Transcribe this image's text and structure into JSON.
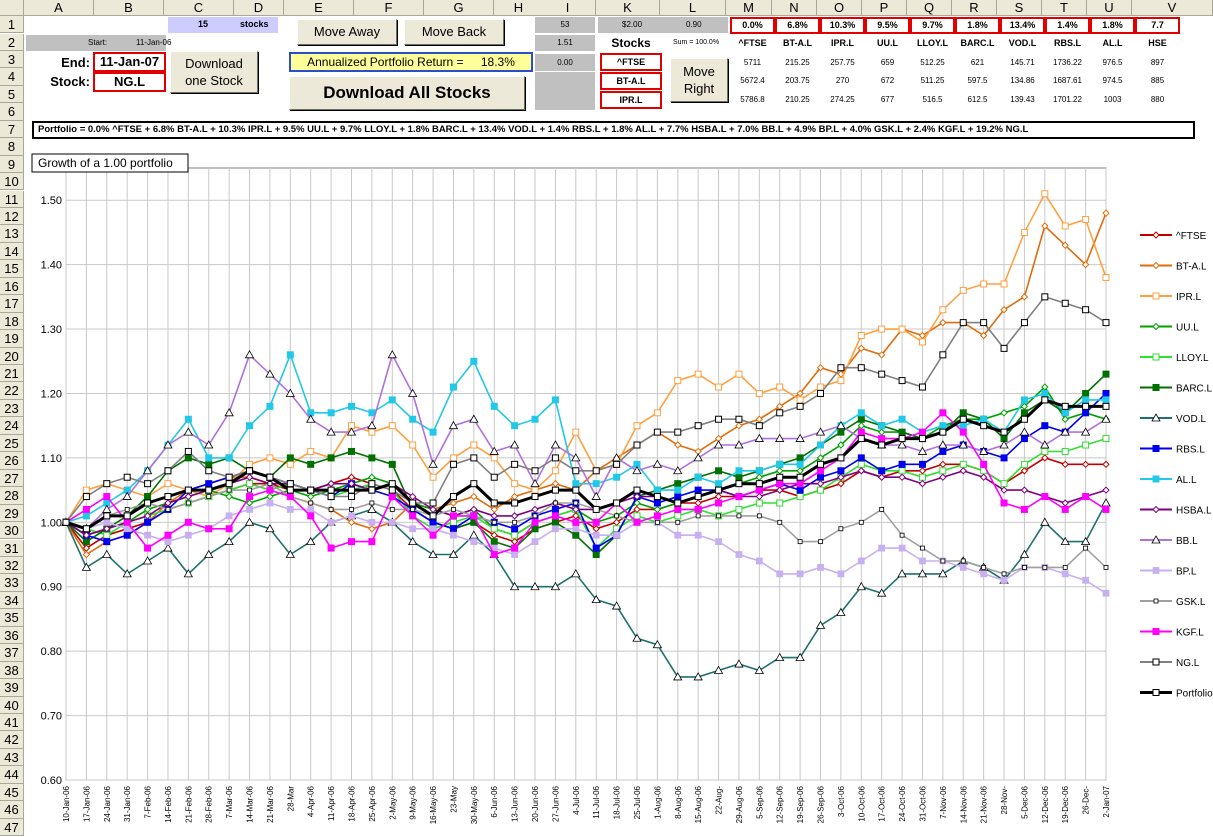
{
  "columns": [
    "A",
    "B",
    "C",
    "D",
    "E",
    "F",
    "G",
    "H",
    "I",
    "K",
    "L",
    "M",
    "N",
    "O",
    "P",
    "Q",
    "R",
    "S",
    "T",
    "U",
    "V"
  ],
  "rows": [
    "1",
    "2",
    "3",
    "4",
    "5",
    "6",
    "7",
    "8",
    "9",
    "10",
    "11",
    "12",
    "13",
    "14",
    "15",
    "16",
    "17",
    "18",
    "19",
    "20",
    "21",
    "22",
    "23",
    "24",
    "25",
    "26",
    "27",
    "28",
    "29",
    "30",
    "31",
    "32",
    "33",
    "34",
    "35",
    "36",
    "37",
    "38",
    "39",
    "40",
    "41",
    "42",
    "43",
    "44",
    "45",
    "46",
    "47"
  ],
  "top": {
    "stock_count": "15",
    "stocks_label": "stocks",
    "start_label": "Start:",
    "start_date": "11-Jan-06",
    "end_label": "End:",
    "end_date": "11-Jan-07",
    "stock_label": "Stock:",
    "stock_value": "NG.L",
    "move_away": "Move Away",
    "move_back": "Move Back",
    "download_one_1": "Download",
    "download_one_2": "one Stock",
    "annualized_label": "Annualized Portfolio Return =",
    "annualized_value": "18.3%",
    "download_all": "Download All Stocks",
    "i1": "53",
    "i2": "1.51",
    "i3": "0.00",
    "k1": "$2.00",
    "l1": "0.90",
    "stocks_header": "Stocks",
    "sum_label": "Sum = 100.0%",
    "move_right_1": "Move",
    "move_right_2": "Right",
    "k3": "^FTSE",
    "k4": "BT-A.L",
    "k5": "IPR.L"
  },
  "grid": {
    "weights": [
      "0.0%",
      "6.8%",
      "10.3%",
      "9.5%",
      "9.7%",
      "1.8%",
      "13.4%",
      "1.4%",
      "1.8%",
      "7.7"
    ],
    "tickers": [
      "^FTSE",
      "BT-A.L",
      "IPR.L",
      "UU.L",
      "LLOY.L",
      "BARC.L",
      "VOD.L",
      "RBS.L",
      "AL.L",
      "HSE"
    ],
    "row3": [
      "5711",
      "215.25",
      "257.75",
      "659",
      "512.25",
      "621",
      "145.71",
      "1736.22",
      "976.5",
      "897"
    ],
    "row4": [
      "5672.4",
      "203.75",
      "270",
      "672",
      "511.25",
      "597.5",
      "134.86",
      "1687.61",
      "974.5",
      "885"
    ],
    "row5": [
      "5786.8",
      "210.25",
      "274.25",
      "677",
      "516.5",
      "612.5",
      "139.43",
      "1701.22",
      "1003",
      "880"
    ]
  },
  "portfolio_text": "Portfolio = 0.0% ^FTSE + 6.8% BT-A.L + 10.3% IPR.L + 9.5% UU.L + 9.7% LLOY.L + 1.8% BARC.L + 13.4% VOD.L + 1.4% RBS.L + 1.8% AL.L + 7.7% HSBA.L + 7.0% BB.L + 4.9% BP.L + 4.0% GSK.L + 2.4% KGF.L + 19.2% NG.L",
  "chart_title": "Growth of a 1.00 portfolio",
  "colors": {
    "^FTSE": "#c00000",
    "BT-A.L": "#e26b0a",
    "IPR.L": "#ffa040",
    "UU.L": "#00a000",
    "LLOY.L": "#33dd33",
    "BARC.L": "#007000",
    "VOD.L": "#1f7070",
    "RBS.L": "#0000ee",
    "AL.L": "#22c8e8",
    "HSBA.L": "#800080",
    "BB.L": "#b070e0",
    "BP.L": "#c8b0f0",
    "GSK.L": "#a0a0a0",
    "KGF.L": "#ff00ff",
    "NG.L": "#808080",
    "Portfolio": "#000000"
  },
  "chart_data": {
    "type": "line",
    "title": "Growth of a 1.00 portfolio",
    "ylim": [
      0.6,
      1.55
    ],
    "yticks": [
      "0.60",
      "0.70",
      "0.80",
      "0.90",
      "1.00",
      "1.10",
      "1.20",
      "1.30",
      "1.40",
      "1.50"
    ],
    "x": [
      "10-Jan-06",
      "17-Jan-06",
      "24-Jan-06",
      "31-Jan-06",
      "7-Feb-06",
      "14-Feb-06",
      "21-Feb-06",
      "28-Feb-06",
      "7-Mar-06",
      "14-Mar-06",
      "21-Mar-06",
      "28-Mar",
      "4-Apr-06",
      "11-Apr-06",
      "18-Apr-06",
      "25-Apr-06",
      "2-May-06",
      "9-May-06",
      "16-May-06",
      "23-May",
      "30-May-06",
      "6-Jun-06",
      "13-Jun-06",
      "20-Jun-06",
      "27-Jun-06",
      "4-Jul-06",
      "11-Jul-06",
      "18-Jul-06",
      "25-Jul-06",
      "1-Aug-06",
      "8-Aug-06",
      "15-Aug-06",
      "22-Aug-",
      "29-Aug-06",
      "5-Sep-06",
      "12-Sep-06",
      "19-Sep-06",
      "26-Sep-06",
      "3-Oct-06",
      "10-Oct-06",
      "17-Oct-06",
      "24-Oct-06",
      "31-Oct-06",
      "7-Nov-06",
      "14-Nov-06",
      "21-Nov-06",
      "28-Nov-",
      "5-Dec-06",
      "12-Dec-06",
      "19-Dec-06",
      "26-Dec-",
      "2-Jan-07"
    ],
    "grid": true,
    "legend": "right",
    "series": [
      {
        "name": "^FTSE",
        "values": [
          1.0,
          0.96,
          0.98,
          0.99,
          1.0,
          1.02,
          1.03,
          1.04,
          1.05,
          1.06,
          1.06,
          1.05,
          1.05,
          1.06,
          1.07,
          1.06,
          1.05,
          1.02,
          1.0,
          0.99,
          1.0,
          0.98,
          0.97,
          0.99,
          1.0,
          1.01,
          0.99,
          1.0,
          1.02,
          1.02,
          1.03,
          1.03,
          1.04,
          1.04,
          1.05,
          1.05,
          1.04,
          1.05,
          1.06,
          1.08,
          1.07,
          1.08,
          1.08,
          1.09,
          1.09,
          1.08,
          1.06,
          1.08,
          1.1,
          1.09,
          1.09,
          1.09
        ]
      },
      {
        "name": "BT-A.L",
        "values": [
          1.0,
          0.95,
          0.97,
          0.98,
          1.0,
          1.03,
          1.05,
          1.06,
          1.07,
          1.07,
          1.06,
          1.04,
          1.03,
          1.02,
          1.0,
          0.99,
          1.0,
          1.03,
          1.02,
          1.03,
          1.04,
          1.02,
          1.04,
          1.05,
          1.06,
          1.05,
          1.08,
          1.1,
          1.12,
          1.14,
          1.12,
          1.11,
          1.13,
          1.15,
          1.16,
          1.18,
          1.2,
          1.24,
          1.23,
          1.27,
          1.26,
          1.3,
          1.29,
          1.31,
          1.31,
          1.29,
          1.33,
          1.35,
          1.46,
          1.43,
          1.4,
          1.48
        ]
      },
      {
        "name": "IPR.L",
        "values": [
          1.0,
          1.05,
          1.06,
          1.05,
          1.04,
          1.06,
          1.05,
          1.04,
          1.06,
          1.09,
          1.1,
          1.09,
          1.11,
          1.1,
          1.15,
          1.14,
          1.15,
          1.12,
          1.07,
          1.1,
          1.12,
          1.1,
          1.06,
          1.05,
          1.08,
          1.14,
          1.08,
          1.09,
          1.15,
          1.17,
          1.22,
          1.23,
          1.21,
          1.23,
          1.2,
          1.21,
          1.19,
          1.21,
          1.22,
          1.29,
          1.3,
          1.3,
          1.28,
          1.33,
          1.36,
          1.37,
          1.37,
          1.45,
          1.51,
          1.46,
          1.47,
          1.38
        ]
      },
      {
        "name": "UU.L",
        "values": [
          1.0,
          0.98,
          0.99,
          1.0,
          1.02,
          1.03,
          1.04,
          1.05,
          1.04,
          1.03,
          1.04,
          1.05,
          1.04,
          1.05,
          1.06,
          1.07,
          1.06,
          1.03,
          1.02,
          1.01,
          1.02,
          0.99,
          0.98,
          1.0,
          1.01,
          1.02,
          1.0,
          1.01,
          1.03,
          1.02,
          1.03,
          1.04,
          1.05,
          1.06,
          1.07,
          1.08,
          1.08,
          1.1,
          1.12,
          1.15,
          1.14,
          1.14,
          1.13,
          1.15,
          1.16,
          1.16,
          1.17,
          1.18,
          1.21,
          1.16,
          1.17,
          1.16
        ]
      },
      {
        "name": "LLOY.L",
        "values": [
          1.0,
          0.99,
          0.98,
          1.0,
          1.01,
          1.02,
          1.03,
          1.04,
          1.05,
          1.06,
          1.05,
          1.06,
          1.05,
          1.04,
          1.05,
          1.06,
          1.05,
          1.01,
          0.99,
          1.0,
          1.01,
          0.99,
          0.98,
          1.0,
          1.01,
          1.02,
          0.96,
          0.99,
          1.01,
          1.0,
          1.01,
          1.02,
          1.01,
          1.02,
          1.03,
          1.03,
          1.04,
          1.05,
          1.07,
          1.09,
          1.08,
          1.08,
          1.07,
          1.08,
          1.09,
          1.08,
          1.06,
          1.09,
          1.11,
          1.11,
          1.12,
          1.13
        ]
      },
      {
        "name": "BARC.L",
        "values": [
          1.0,
          0.97,
          0.99,
          1.01,
          1.04,
          1.08,
          1.1,
          1.09,
          1.1,
          1.08,
          1.07,
          1.1,
          1.09,
          1.1,
          1.11,
          1.1,
          1.09,
          1.02,
          1.0,
          0.99,
          1.0,
          0.97,
          0.96,
          0.99,
          1.0,
          0.98,
          0.95,
          0.98,
          1.04,
          1.05,
          1.06,
          1.07,
          1.08,
          1.07,
          1.08,
          1.09,
          1.1,
          1.12,
          1.14,
          1.16,
          1.15,
          1.14,
          1.13,
          1.14,
          1.17,
          1.16,
          1.13,
          1.17,
          1.19,
          1.17,
          1.2,
          1.23
        ]
      },
      {
        "name": "VOD.L",
        "values": [
          1.0,
          0.93,
          0.95,
          0.92,
          0.94,
          0.96,
          0.92,
          0.95,
          0.97,
          1.0,
          0.99,
          0.95,
          0.97,
          1.0,
          1.01,
          1.02,
          1.0,
          0.97,
          0.95,
          0.95,
          0.98,
          0.95,
          0.9,
          0.9,
          0.9,
          0.92,
          0.88,
          0.87,
          0.82,
          0.81,
          0.76,
          0.76,
          0.77,
          0.78,
          0.77,
          0.79,
          0.79,
          0.84,
          0.86,
          0.9,
          0.89,
          0.92,
          0.92,
          0.92,
          0.94,
          0.93,
          0.91,
          0.95,
          1.0,
          0.97,
          0.97,
          1.03
        ]
      },
      {
        "name": "RBS.L",
        "values": [
          1.0,
          0.98,
          0.97,
          0.98,
          1.0,
          1.02,
          1.05,
          1.06,
          1.07,
          1.08,
          1.07,
          1.06,
          1.05,
          1.04,
          1.06,
          1.05,
          1.04,
          1.02,
          1.0,
          0.99,
          1.01,
          1.0,
          0.99,
          1.01,
          1.02,
          1.03,
          0.96,
          0.98,
          1.04,
          1.03,
          1.04,
          1.05,
          1.05,
          1.04,
          1.05,
          1.06,
          1.05,
          1.07,
          1.08,
          1.1,
          1.08,
          1.09,
          1.09,
          1.11,
          1.12,
          1.11,
          1.1,
          1.13,
          1.15,
          1.14,
          1.17,
          1.2
        ]
      },
      {
        "name": "AL.L",
        "values": [
          1.0,
          1.01,
          1.03,
          1.05,
          1.08,
          1.12,
          1.16,
          1.1,
          1.1,
          1.15,
          1.18,
          1.26,
          1.17,
          1.17,
          1.18,
          1.17,
          1.19,
          1.16,
          1.14,
          1.21,
          1.25,
          1.18,
          1.15,
          1.16,
          1.19,
          1.06,
          1.06,
          1.07,
          1.09,
          1.05,
          1.05,
          1.07,
          1.06,
          1.08,
          1.08,
          1.09,
          1.09,
          1.12,
          1.15,
          1.17,
          1.15,
          1.16,
          1.14,
          1.15,
          1.15,
          1.16,
          1.14,
          1.19,
          1.2,
          1.17,
          1.19,
          1.19
        ]
      },
      {
        "name": "HSBA.L",
        "values": [
          1.0,
          0.98,
          0.99,
          1.0,
          1.01,
          1.03,
          1.04,
          1.05,
          1.06,
          1.07,
          1.06,
          1.06,
          1.05,
          1.06,
          1.06,
          1.05,
          1.06,
          1.04,
          1.02,
          1.01,
          1.02,
          1.01,
          1.01,
          1.02,
          1.03,
          1.02,
          1.02,
          1.03,
          1.04,
          1.04,
          1.03,
          1.04,
          1.05,
          1.04,
          1.04,
          1.05,
          1.06,
          1.06,
          1.07,
          1.08,
          1.07,
          1.07,
          1.06,
          1.07,
          1.08,
          1.07,
          1.05,
          1.05,
          1.04,
          1.03,
          1.04,
          1.05
        ]
      },
      {
        "name": "BB.L",
        "values": [
          1.0,
          0.99,
          1.02,
          1.04,
          1.08,
          1.12,
          1.14,
          1.12,
          1.17,
          1.26,
          1.23,
          1.2,
          1.16,
          1.14,
          1.14,
          1.15,
          1.26,
          1.2,
          1.09,
          1.15,
          1.16,
          1.11,
          1.12,
          1.06,
          1.12,
          1.1,
          1.04,
          1.1,
          1.08,
          1.09,
          1.08,
          1.1,
          1.12,
          1.12,
          1.13,
          1.13,
          1.13,
          1.14,
          1.15,
          1.13,
          1.12,
          1.12,
          1.11,
          1.12,
          1.12,
          1.11,
          1.12,
          1.14,
          1.12,
          1.14,
          1.14,
          1.16
        ]
      },
      {
        "name": "BP.L",
        "values": [
          1.0,
          0.99,
          1.0,
          0.99,
          0.98,
          0.97,
          0.98,
          0.99,
          1.01,
          1.02,
          1.03,
          1.02,
          1.02,
          1.0,
          1.01,
          1.0,
          1.0,
          0.99,
          0.99,
          0.98,
          0.97,
          0.96,
          0.95,
          0.97,
          0.99,
          0.99,
          0.98,
          0.98,
          1.0,
          1.0,
          0.98,
          0.98,
          0.97,
          0.95,
          0.94,
          0.92,
          0.92,
          0.93,
          0.92,
          0.94,
          0.96,
          0.96,
          0.94,
          0.94,
          0.93,
          0.92,
          0.91,
          0.93,
          0.93,
          0.92,
          0.91,
          0.89
        ]
      },
      {
        "name": "GSK.L",
        "values": [
          1.0,
          0.99,
          1.01,
          1.02,
          1.03,
          1.02,
          1.03,
          1.04,
          1.05,
          1.05,
          1.06,
          1.04,
          1.03,
          1.02,
          1.02,
          1.03,
          1.02,
          1.02,
          1.01,
          1.02,
          1.01,
          1.0,
          1.0,
          1.01,
          1.03,
          1.03,
          1.02,
          1.01,
          1.0,
          1.0,
          1.0,
          1.01,
          1.01,
          1.01,
          1.01,
          1.0,
          0.97,
          0.97,
          0.99,
          1.0,
          1.02,
          0.98,
          0.96,
          0.94,
          0.94,
          0.93,
          0.92,
          0.93,
          0.93,
          0.93,
          0.96,
          0.93
        ]
      },
      {
        "name": "KGF.L",
        "values": [
          1.0,
          1.02,
          1.04,
          1.0,
          0.96,
          0.98,
          1.0,
          0.99,
          0.99,
          1.04,
          1.05,
          1.04,
          1.01,
          0.96,
          0.97,
          0.97,
          1.04,
          1.01,
          0.98,
          1.01,
          1.01,
          0.95,
          0.96,
          1.0,
          1.01,
          1.0,
          1.0,
          1.03,
          1.0,
          1.01,
          1.02,
          1.02,
          1.03,
          1.04,
          1.05,
          1.06,
          1.06,
          1.08,
          1.1,
          1.14,
          1.13,
          1.13,
          1.14,
          1.17,
          1.14,
          1.09,
          1.03,
          1.02,
          1.04,
          1.02,
          1.04,
          1.02
        ]
      },
      {
        "name": "NG.L",
        "values": [
          1.0,
          1.04,
          1.06,
          1.07,
          1.06,
          1.08,
          1.11,
          1.08,
          1.07,
          1.08,
          1.07,
          1.06,
          1.05,
          1.04,
          1.04,
          1.06,
          1.05,
          1.03,
          1.03,
          1.09,
          1.1,
          1.07,
          1.09,
          1.08,
          1.1,
          1.08,
          1.08,
          1.09,
          1.12,
          1.14,
          1.14,
          1.15,
          1.16,
          1.16,
          1.15,
          1.17,
          1.18,
          1.2,
          1.24,
          1.24,
          1.23,
          1.22,
          1.21,
          1.26,
          1.31,
          1.31,
          1.27,
          1.31,
          1.35,
          1.34,
          1.33,
          1.31
        ]
      },
      {
        "name": "Portfolio",
        "values": [
          1.0,
          0.99,
          1.01,
          1.01,
          1.03,
          1.04,
          1.05,
          1.05,
          1.06,
          1.08,
          1.07,
          1.05,
          1.05,
          1.05,
          1.05,
          1.05,
          1.06,
          1.03,
          1.01,
          1.04,
          1.06,
          1.03,
          1.03,
          1.04,
          1.05,
          1.05,
          1.02,
          1.03,
          1.05,
          1.04,
          1.03,
          1.04,
          1.05,
          1.06,
          1.06,
          1.07,
          1.07,
          1.09,
          1.1,
          1.13,
          1.12,
          1.13,
          1.13,
          1.14,
          1.16,
          1.15,
          1.14,
          1.16,
          1.19,
          1.18,
          1.18,
          1.18
        ]
      }
    ]
  }
}
